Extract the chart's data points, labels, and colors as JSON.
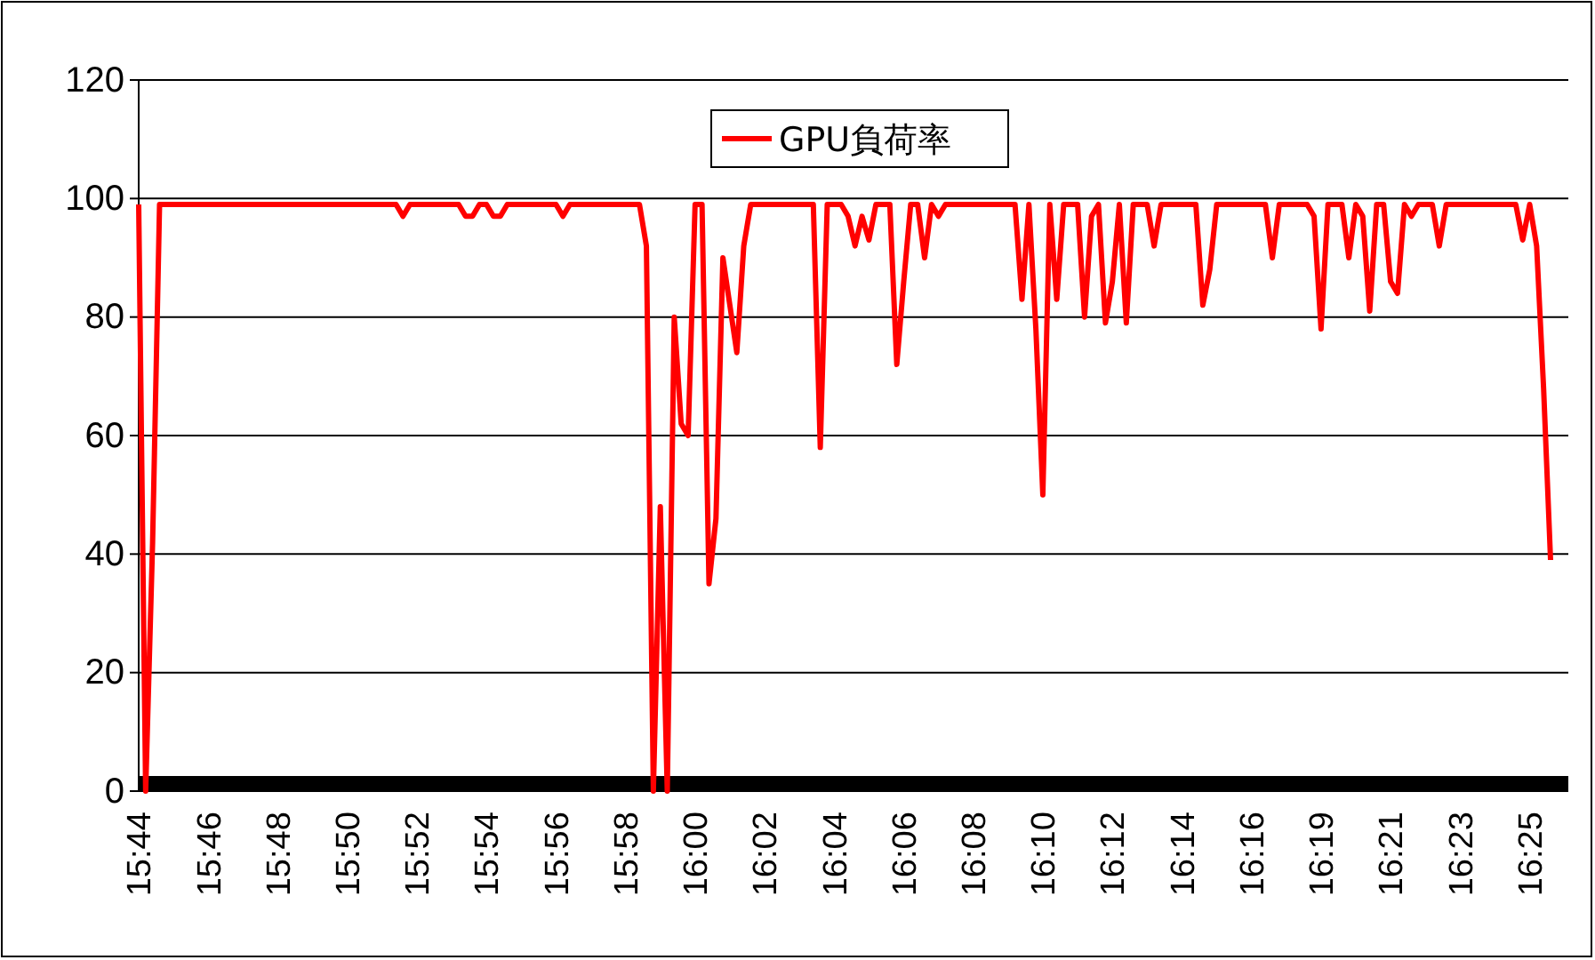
{
  "chart_data": {
    "type": "line",
    "categories": [
      "15:44",
      null,
      null,
      null,
      null,
      null,
      null,
      null,
      null,
      null,
      "15:46",
      null,
      null,
      null,
      null,
      null,
      null,
      null,
      null,
      null,
      "15:48",
      null,
      null,
      null,
      null,
      null,
      null,
      null,
      null,
      null,
      "15:50",
      null,
      null,
      null,
      null,
      null,
      null,
      null,
      null,
      null,
      "15:52",
      null,
      null,
      null,
      null,
      null,
      null,
      null,
      null,
      null,
      "15:54",
      null,
      null,
      null,
      null,
      null,
      null,
      null,
      null,
      null,
      "15:56",
      null,
      null,
      null,
      null,
      null,
      null,
      null,
      null,
      null,
      "15:58",
      null,
      null,
      null,
      null,
      null,
      null,
      null,
      null,
      null,
      "16:00",
      null,
      null,
      null,
      null,
      null,
      null,
      null,
      null,
      null,
      "16:02",
      null,
      null,
      null,
      null,
      null,
      null,
      null,
      null,
      null,
      "16:04",
      null,
      null,
      null,
      null,
      null,
      null,
      null,
      null,
      null,
      "16:06",
      null,
      null,
      null,
      null,
      null,
      null,
      null,
      null,
      null,
      "16:08",
      null,
      null,
      null,
      null,
      null,
      null,
      null,
      null,
      null,
      "16:10",
      null,
      null,
      null,
      null,
      null,
      null,
      null,
      null,
      null,
      "16:12",
      null,
      null,
      null,
      null,
      null,
      null,
      null,
      null,
      null,
      "16:14",
      null,
      null,
      null,
      null,
      null,
      null,
      null,
      null,
      null,
      "16:16",
      null,
      null,
      null,
      null,
      null,
      null,
      null,
      null,
      null,
      "16:19",
      null,
      null,
      null,
      null,
      null,
      null,
      null,
      null,
      null,
      "16:21",
      null,
      null,
      null,
      null,
      null,
      null,
      null,
      null,
      null,
      "16:23",
      null,
      null,
      null,
      null,
      null,
      null,
      null,
      null,
      null,
      "16:25",
      null,
      null,
      null
    ],
    "series": [
      {
        "name": "GPU負荷率",
        "color": "#ff0000",
        "values": [
          99,
          0,
          42,
          99,
          99,
          99,
          99,
          99,
          99,
          99,
          99,
          99,
          99,
          99,
          99,
          99,
          99,
          99,
          99,
          99,
          99,
          99,
          99,
          99,
          99,
          99,
          99,
          99,
          99,
          99,
          99,
          99,
          99,
          99,
          99,
          99,
          99,
          99,
          97,
          99,
          99,
          99,
          99,
          99,
          99,
          99,
          99,
          97,
          97,
          99,
          99,
          97,
          97,
          99,
          99,
          99,
          99,
          99,
          99,
          99,
          99,
          97,
          99,
          99,
          99,
          99,
          99,
          99,
          99,
          99,
          99,
          99,
          99,
          92,
          0,
          48,
          0,
          80,
          62,
          60,
          99,
          99,
          35,
          46,
          90,
          82,
          74,
          92,
          99,
          99,
          99,
          99,
          99,
          99,
          99,
          99,
          99,
          99,
          58,
          99,
          99,
          99,
          97,
          92,
          97,
          93,
          99,
          99,
          99,
          72,
          86,
          99,
          99,
          90,
          99,
          97,
          99,
          99,
          99,
          99,
          99,
          99,
          99,
          99,
          99,
          99,
          99,
          83,
          99,
          78,
          50,
          99,
          83,
          99,
          99,
          99,
          80,
          97,
          99,
          79,
          86,
          99,
          79,
          99,
          99,
          99,
          92,
          99,
          99,
          99,
          99,
          99,
          99,
          82,
          88,
          99,
          99,
          99,
          99,
          99,
          99,
          99,
          99,
          90,
          99,
          99,
          99,
          99,
          99,
          97,
          78,
          99,
          99,
          99,
          90,
          99,
          97,
          81,
          99,
          99,
          86,
          84,
          99,
          97,
          99,
          99,
          99,
          92,
          99,
          99,
          99,
          99,
          99,
          99,
          99,
          99,
          99,
          99,
          99,
          93,
          99,
          92,
          68,
          39
        ]
      }
    ],
    "ylim": [
      0,
      120
    ],
    "yticks": [
      0,
      20,
      40,
      60,
      80,
      100,
      120
    ],
    "grid": "y",
    "legend": "top",
    "marker": "none",
    "line_style": "solid"
  }
}
